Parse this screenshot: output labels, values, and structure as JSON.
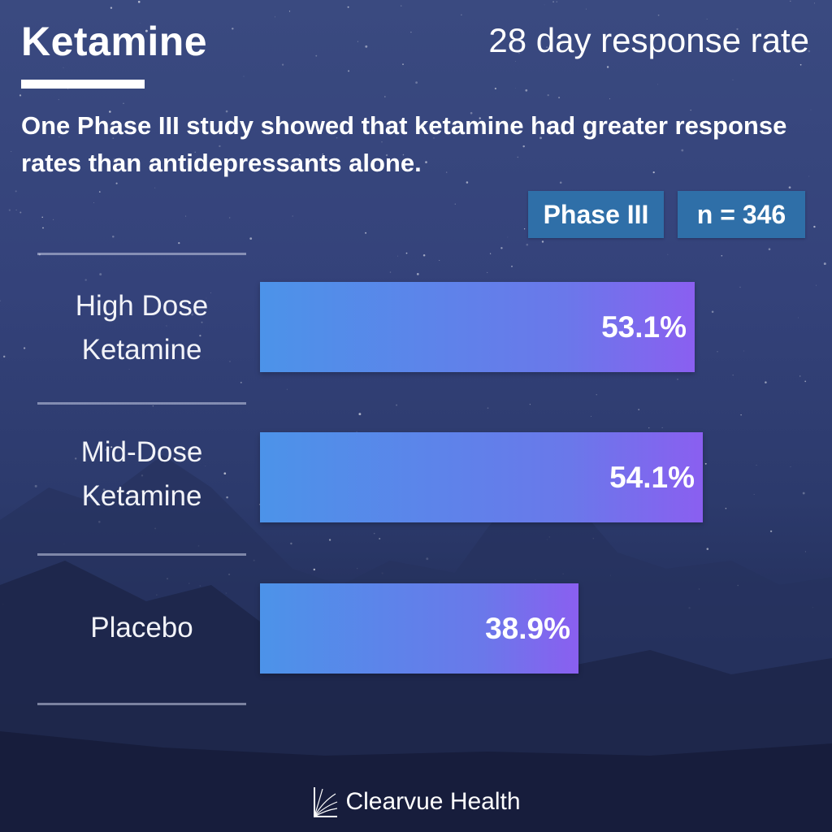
{
  "header": {
    "title": "Ketamine",
    "right_title": "28 day response rate",
    "subtitle": "One Phase III study showed that ketamine had greater response rates than antidepressants alone."
  },
  "badges": {
    "phase": "Phase III",
    "n": "n = 346"
  },
  "colors": {
    "badge": "#2f6fa8",
    "bar_start": "#4c93e9",
    "bar_end": "#8a5ff0"
  },
  "chart_data": {
    "type": "bar",
    "orientation": "horizontal",
    "categories": [
      {
        "line1": "High Dose",
        "line2": "Ketamine"
      },
      {
        "line1": "Mid-Dose",
        "line2": "Ketamine"
      },
      {
        "line1": "Placebo",
        "line2": ""
      }
    ],
    "values": [
      53.1,
      54.1,
      38.9
    ],
    "value_labels": [
      "53.1%",
      "54.1%",
      "38.9%"
    ],
    "unit": "%",
    "xlim": [
      0,
      100
    ]
  },
  "footer": {
    "brand": "Clearvue Health",
    "logo_icon": "clearvue-logo-icon"
  }
}
